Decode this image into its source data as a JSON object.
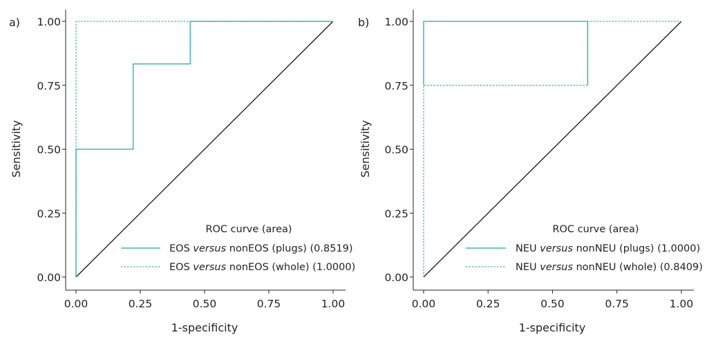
{
  "colors": {
    "curve": "#3fb8b0",
    "diagonal": "#111111",
    "axis": "#222222",
    "text": "#222222"
  },
  "chart_data": [
    {
      "panel_label": "a)",
      "type": "line",
      "xlabel": "1-specificity",
      "ylabel": "Sensitivity",
      "xlim": [
        0,
        1
      ],
      "ylim": [
        0,
        1
      ],
      "x_ticks": [
        "0.00",
        "0.25",
        "0.50",
        "0.75",
        "1.00"
      ],
      "y_ticks": [
        "0.00",
        "0.25",
        "0.50",
        "0.75",
        "1.00"
      ],
      "grid": false,
      "legend": {
        "title": "ROC curve (area)",
        "position": "bottom-right",
        "entries": [
          {
            "prefix": "EOS ",
            "italic": "versus",
            "suffix": " nonEOS (plugs) (0.8519)",
            "style": "solid"
          },
          {
            "prefix": "EOS ",
            "italic": "versus",
            "suffix": " nonEOS (whole) (1.0000)",
            "style": "dotted"
          }
        ]
      },
      "series": [
        {
          "style": "solid",
          "points": [
            [
              0,
              0
            ],
            [
              0,
              0.5
            ],
            [
              0.2222,
              0.5
            ],
            [
              0.2222,
              0.8333
            ],
            [
              0.4444,
              0.8333
            ],
            [
              0.4444,
              1.0
            ],
            [
              1.0,
              1.0
            ]
          ]
        },
        {
          "style": "dotted",
          "points": [
            [
              0,
              0
            ],
            [
              0,
              1.0
            ],
            [
              1.0,
              1.0
            ]
          ]
        }
      ],
      "reference_line": [
        [
          0,
          0
        ],
        [
          1,
          1
        ]
      ]
    },
    {
      "panel_label": "b)",
      "type": "line",
      "xlabel": "1-specificity",
      "ylabel": "Sensitivity",
      "xlim": [
        0,
        1
      ],
      "ylim": [
        0,
        1
      ],
      "x_ticks": [
        "0.00",
        "0.25",
        "0.50",
        "0.75",
        "1.00"
      ],
      "y_ticks": [
        "0.00",
        "0.25",
        "0.50",
        "0.75",
        "1.00"
      ],
      "grid": false,
      "legend": {
        "title": "ROC curve (area)",
        "position": "bottom-right",
        "entries": [
          {
            "prefix": "NEU ",
            "italic": "versus",
            "suffix": " nonNEU (plugs) (1.0000)",
            "style": "solid"
          },
          {
            "prefix": "NEU ",
            "italic": "versus",
            "suffix": " nonNEU (whole) (0.8409)",
            "style": "dotted"
          }
        ]
      },
      "series": [
        {
          "style": "solid",
          "points": [
            [
              0,
              0.75
            ],
            [
              0,
              1.0
            ],
            [
              0.6364,
              1.0
            ],
            [
              0.6364,
              0.75
            ]
          ]
        },
        {
          "style": "dotted",
          "points": [
            [
              0,
              0
            ],
            [
              0,
              0.75
            ],
            [
              0.6364,
              0.75
            ],
            [
              0.6364,
              1.0
            ],
            [
              1.0,
              1.0
            ]
          ]
        }
      ],
      "reference_line": [
        [
          0,
          0
        ],
        [
          1,
          1
        ]
      ]
    }
  ]
}
